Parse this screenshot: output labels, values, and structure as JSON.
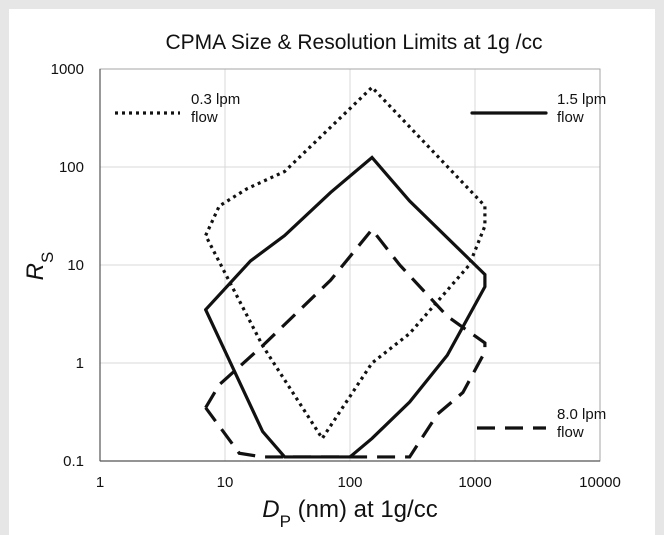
{
  "chart_data": {
    "type": "line",
    "title": "CPMA Size & Resolution Limits at 1g /cc",
    "xlabel": {
      "main": "D",
      "sub": "P",
      "rest": " (nm) at 1g/cc"
    },
    "ylabel": {
      "main": "R",
      "sub": "S"
    },
    "xscale": "log",
    "yscale": "log",
    "xlim": [
      1,
      10000
    ],
    "ylim": [
      0.1,
      1000
    ],
    "xticks": [
      1,
      10,
      100,
      1000,
      10000
    ],
    "yticks": [
      0.1,
      1,
      10,
      100,
      1000
    ],
    "xtick_labels": [
      "1",
      "10",
      "100",
      "1000",
      "10000"
    ],
    "ytick_labels": [
      "0.1",
      "1",
      "10",
      "100",
      "1000"
    ],
    "grid": true,
    "series": [
      {
        "name": [
          "0.3 lpm",
          "flow"
        ],
        "style": "dotted",
        "legend_position": "top-left",
        "points": [
          {
            "x": 7,
            "y": 20
          },
          {
            "x": 9,
            "y": 40
          },
          {
            "x": 15,
            "y": 60
          },
          {
            "x": 30,
            "y": 90
          },
          {
            "x": 150,
            "y": 650
          },
          {
            "x": 1200,
            "y": 40
          },
          {
            "x": 1200,
            "y": 25
          },
          {
            "x": 900,
            "y": 10
          },
          {
            "x": 300,
            "y": 2
          },
          {
            "x": 150,
            "y": 1
          },
          {
            "x": 60,
            "y": 0.17
          },
          {
            "x": 20,
            "y": 1.5
          },
          {
            "x": 7,
            "y": 20
          }
        ]
      },
      {
        "name": [
          "1.5 lpm",
          "flow"
        ],
        "style": "solid",
        "legend_position": "top-right",
        "points": [
          {
            "x": 7,
            "y": 3.5
          },
          {
            "x": 16,
            "y": 11
          },
          {
            "x": 30,
            "y": 20
          },
          {
            "x": 70,
            "y": 55
          },
          {
            "x": 150,
            "y": 125
          },
          {
            "x": 300,
            "y": 45
          },
          {
            "x": 1200,
            "y": 8
          },
          {
            "x": 1200,
            "y": 6
          },
          {
            "x": 600,
            "y": 1.2
          },
          {
            "x": 300,
            "y": 0.4
          },
          {
            "x": 150,
            "y": 0.17
          },
          {
            "x": 100,
            "y": 0.11
          },
          {
            "x": 50,
            "y": 0.11
          },
          {
            "x": 30,
            "y": 0.11
          },
          {
            "x": 20,
            "y": 0.2
          },
          {
            "x": 7,
            "y": 3.5
          }
        ]
      },
      {
        "name": [
          "8.0 lpm",
          "flow"
        ],
        "style": "dashed",
        "legend_position": "bottom-right",
        "points": [
          {
            "x": 7,
            "y": 0.35
          },
          {
            "x": 9,
            "y": 0.6
          },
          {
            "x": 20,
            "y": 1.5
          },
          {
            "x": 70,
            "y": 7
          },
          {
            "x": 150,
            "y": 23
          },
          {
            "x": 250,
            "y": 10
          },
          {
            "x": 600,
            "y": 3
          },
          {
            "x": 1200,
            "y": 1.6
          },
          {
            "x": 1200,
            "y": 1.3
          },
          {
            "x": 800,
            "y": 0.5
          },
          {
            "x": 500,
            "y": 0.3
          },
          {
            "x": 300,
            "y": 0.11
          },
          {
            "x": 100,
            "y": 0.11
          },
          {
            "x": 20,
            "y": 0.11
          },
          {
            "x": 13,
            "y": 0.12
          },
          {
            "x": 7,
            "y": 0.35
          }
        ]
      }
    ]
  }
}
